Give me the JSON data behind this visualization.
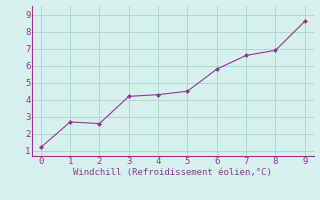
{
  "x": [
    0,
    1,
    2,
    3,
    4,
    5,
    6,
    7,
    8,
    9
  ],
  "y": [
    1.2,
    2.7,
    2.6,
    4.2,
    4.3,
    4.5,
    5.8,
    6.6,
    6.9,
    8.6
  ],
  "line_color": "#993399",
  "marker_color": "#993399",
  "marker": "D",
  "marker_size": 2.0,
  "linewidth": 0.8,
  "xlabel": "Windchill (Refroidissement éolien,°C)",
  "xlabel_color": "#993399",
  "xlabel_fontsize": 6.5,
  "bg_color": "#d6f0ee",
  "grid_color": "#b0d8d4",
  "tick_color": "#993399",
  "spine_color": "#993399",
  "xlim": [
    -0.3,
    9.3
  ],
  "ylim": [
    0.7,
    9.5
  ],
  "xticks": [
    0,
    1,
    2,
    3,
    4,
    5,
    6,
    7,
    8,
    9
  ],
  "yticks": [
    1,
    2,
    3,
    4,
    5,
    6,
    7,
    8,
    9
  ],
  "tick_fontsize": 6.5
}
